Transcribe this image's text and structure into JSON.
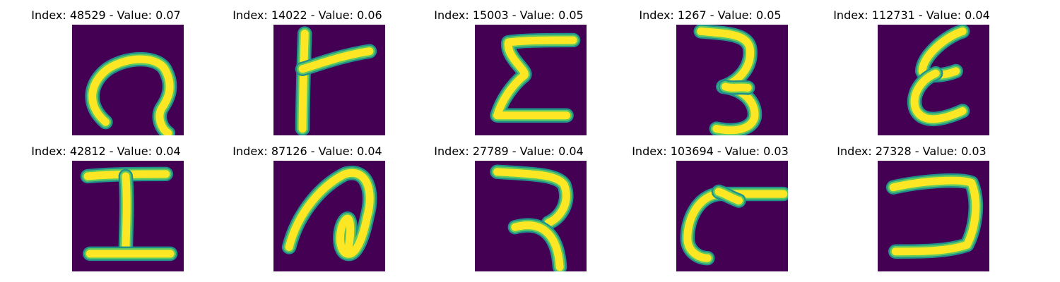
{
  "colors": {
    "background": "#440154",
    "stroke_edge": "#21918c",
    "stroke_mid": "#5ec962",
    "stroke_core": "#fde725"
  },
  "figure": {
    "panels": [
      {
        "title": "Index: 48529 - Value: 0.07",
        "glyph": "hook-loop-icon"
      },
      {
        "title": "Index: 14022 - Value: 0.06",
        "glyph": "vertical-with-branch-icon"
      },
      {
        "title": "Index: 15003 - Value: 0.05",
        "glyph": "sigma-like-icon"
      },
      {
        "title": "Index: 1267 - Value: 0.05",
        "glyph": "three-like-icon"
      },
      {
        "title": "Index: 112731 - Value: 0.04",
        "glyph": "epsilon-like-icon"
      },
      {
        "title": "Index: 42812 - Value: 0.04",
        "glyph": "capital-i-icon"
      },
      {
        "title": "Index: 87126 - Value: 0.04",
        "glyph": "arch-with-loop-icon"
      },
      {
        "title": "Index: 27789 - Value: 0.04",
        "glyph": "hooked-seven-icon"
      },
      {
        "title": "Index: 103694 - Value: 0.03",
        "glyph": "curved-c-with-bar-icon"
      },
      {
        "title": "Index: 27328 - Value: 0.03",
        "glyph": "reversed-c-bracket-icon"
      }
    ]
  }
}
